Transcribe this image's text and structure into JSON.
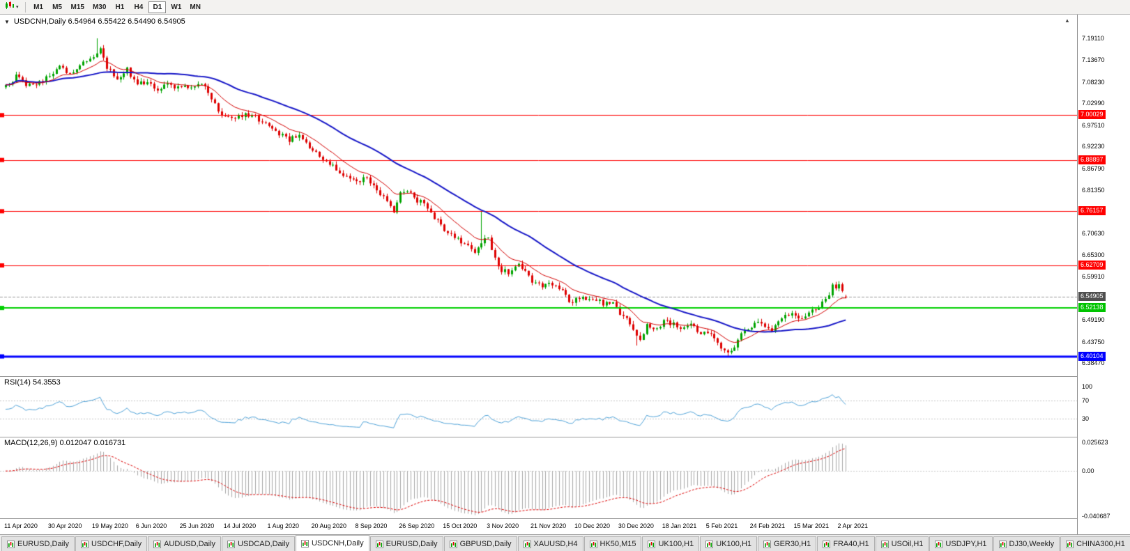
{
  "toolbar": {
    "timeframes": [
      "M1",
      "M5",
      "M15",
      "M30",
      "H1",
      "H4",
      "D1",
      "W1",
      "MN"
    ],
    "active_timeframe": "D1",
    "chart_type_icon": "candlestick-chart-icon"
  },
  "icons": {
    "collapse_triangle": "▼",
    "dropdown_caret": "▾",
    "shift_marker": "▲"
  },
  "chart": {
    "symbol": "USDCNH",
    "period": "Daily",
    "header": "USDCNH,Daily 6.54964 6.55422 6.54490 6.54905"
  },
  "price_scale": {
    "labels": [
      "7.19110",
      "7.13670",
      "7.08230",
      "7.02990",
      "6.97510",
      "6.92230",
      "6.86790",
      "6.81350",
      "6.70630",
      "6.65300",
      "6.59910",
      "6.49190",
      "6.43750",
      "6.38470"
    ],
    "badges": [
      {
        "text": "7.00029",
        "value": 7.00029,
        "bg": "#FF0000",
        "fg": "#FFFFFF",
        "name": "resistance-level-badge-7-00029"
      },
      {
        "text": "6.88897",
        "value": 6.88897,
        "bg": "#FF0000",
        "fg": "#FFFFFF",
        "name": "resistance-level-badge-6-88897"
      },
      {
        "text": "6.76157",
        "value": 6.76157,
        "bg": "#FF0000",
        "fg": "#FFFFFF",
        "name": "resistance-level-badge-6-76157"
      },
      {
        "text": "6.62709",
        "value": 6.62709,
        "bg": "#FF0000",
        "fg": "#FFFFFF",
        "name": "resistance-level-badge-6-62709"
      },
      {
        "text": "6.54905",
        "value": 6.54905,
        "bg": "#4f4f4f",
        "fg": "#FFFFFF",
        "name": "current-price-badge"
      },
      {
        "text": "6.52138",
        "value": 6.52138,
        "bg": "#00C400",
        "fg": "#FFFFFF",
        "name": "support-level-badge-6-52138"
      },
      {
        "text": "6.40104",
        "value": 6.40104,
        "bg": "#0000FF",
        "fg": "#FFFFFF",
        "name": "support-level-badge-6-40104"
      }
    ]
  },
  "rsi": {
    "label": "RSI(14) 54.3553",
    "scale_labels": [
      {
        "text": "100",
        "value": 100
      },
      {
        "text": "70",
        "value": 70
      },
      {
        "text": "30",
        "value": 30
      }
    ],
    "levels": [
      70,
      30
    ],
    "line_color": "#4FA3D9"
  },
  "macd": {
    "label": "MACD(12,26,9) 0.012047 0.016731",
    "scale_labels": [
      {
        "text": "0.025623",
        "value": 0.025623
      },
      {
        "text": "0.00",
        "value": 0
      },
      {
        "text": "-0.040687",
        "value": -0.040687
      }
    ]
  },
  "time_axis": {
    "labels": [
      "11 Apr 2020",
      "30 Apr 2020",
      "19 May 2020",
      "6 Jun 2020",
      "25 Jun 2020",
      "14 Jul 2020",
      "1 Aug 2020",
      "20 Aug 2020",
      "8 Sep 2020",
      "26 Sep 2020",
      "15 Oct 2020",
      "3 Nov 2020",
      "21 Nov 2020",
      "10 Dec 2020",
      "30 Dec 2020",
      "18 Jan 2021",
      "5 Feb 2021",
      "24 Feb 2021",
      "15 Mar 2021",
      "2 Apr 2021"
    ]
  },
  "tabs": [
    {
      "label": "EURUSD,Daily"
    },
    {
      "label": "USDCHF,Daily"
    },
    {
      "label": "AUDUSD,Daily"
    },
    {
      "label": "USDCAD,Daily"
    },
    {
      "label": "USDCNH,Daily",
      "active": true
    },
    {
      "label": "EURUSD,Daily"
    },
    {
      "label": "GBPUSD,Daily"
    },
    {
      "label": "XAUUSD,H4"
    },
    {
      "label": "HK50,M15"
    },
    {
      "label": "UK100,H1"
    },
    {
      "label": "UK100,H1"
    },
    {
      "label": "GER30,H1"
    },
    {
      "label": "FRA40,H1"
    },
    {
      "label": "USOil,H1"
    },
    {
      "label": "USDJPY,H1"
    },
    {
      "label": "DJ30,Weekly"
    },
    {
      "label": "CHINA300,H1"
    }
  ],
  "colors": {
    "candle_up": "#00A400",
    "candle_down": "#DE0000",
    "ma_fast": "#D40000",
    "ma_slow": "#1818C8",
    "bid_line": "#9a9a9a",
    "macd_histogram": "#A8A8A8",
    "macd_signal": "#DE0000",
    "rsi_levels": "#c6c6c6"
  },
  "chart_data": {
    "type": "candlestick",
    "symbol": "USDCNH",
    "timeframe": "Daily",
    "last_ohlc": {
      "open": 6.54964,
      "high": 6.55422,
      "low": 6.5449,
      "close": 6.54905
    },
    "num_candles": 250,
    "x_range": [
      "11 Apr 2020",
      "2 Apr 2021"
    ],
    "ylim": [
      6.352,
      7.25
    ],
    "price_anchors": [
      [
        0,
        7.07
      ],
      [
        3,
        7.095
      ],
      [
        6,
        7.075
      ],
      [
        10,
        7.082
      ],
      [
        13,
        7.096
      ],
      [
        16,
        7.128
      ],
      [
        18,
        7.1
      ],
      [
        20,
        7.112
      ],
      [
        23,
        7.135
      ],
      [
        26,
        7.15
      ],
      [
        28,
        7.168
      ],
      [
        30,
        7.12
      ],
      [
        33,
        7.092
      ],
      [
        36,
        7.113
      ],
      [
        39,
        7.078
      ],
      [
        42,
        7.086
      ],
      [
        45,
        7.066
      ],
      [
        48,
        7.076
      ],
      [
        52,
        7.07
      ],
      [
        55,
        7.066
      ],
      [
        58,
        7.076
      ],
      [
        61,
        7.046
      ],
      [
        63,
        7.008
      ],
      [
        65,
        7.0
      ],
      [
        68,
        6.99
      ],
      [
        71,
        7.004
      ],
      [
        74,
        6.996
      ],
      [
        78,
        6.972
      ],
      [
        81,
        6.952
      ],
      [
        84,
        6.94
      ],
      [
        87,
        6.95
      ],
      [
        91,
        6.912
      ],
      [
        94,
        6.892
      ],
      [
        97,
        6.872
      ],
      [
        100,
        6.852
      ],
      [
        104,
        6.838
      ],
      [
        107,
        6.842
      ],
      [
        110,
        6.815
      ],
      [
        113,
        6.782
      ],
      [
        115,
        6.758
      ],
      [
        117,
        6.805
      ],
      [
        119,
        6.815
      ],
      [
        121,
        6.792
      ],
      [
        124,
        6.78
      ],
      [
        127,
        6.748
      ],
      [
        130,
        6.716
      ],
      [
        133,
        6.7
      ],
      [
        136,
        6.682
      ],
      [
        139,
        6.658
      ],
      [
        141,
        6.688
      ],
      [
        143,
        6.692
      ],
      [
        146,
        6.622
      ],
      [
        149,
        6.606
      ],
      [
        152,
        6.63
      ],
      [
        154,
        6.612
      ],
      [
        156,
        6.582
      ],
      [
        159,
        6.576
      ],
      [
        162,
        6.58
      ],
      [
        165,
        6.56
      ],
      [
        167,
        6.536
      ],
      [
        169,
        6.54
      ],
      [
        172,
        6.546
      ],
      [
        175,
        6.54
      ],
      [
        178,
        6.53
      ],
      [
        180,
        6.538
      ],
      [
        182,
        6.506
      ],
      [
        184,
        6.496
      ],
      [
        186,
        6.462
      ],
      [
        188,
        6.446
      ],
      [
        190,
        6.476
      ],
      [
        192,
        6.466
      ],
      [
        195,
        6.486
      ],
      [
        198,
        6.48
      ],
      [
        200,
        6.47
      ],
      [
        203,
        6.486
      ],
      [
        205,
        6.462
      ],
      [
        208,
        6.463
      ],
      [
        210,
        6.442
      ],
      [
        212,
        6.426
      ],
      [
        214,
        6.412
      ],
      [
        216,
        6.422
      ],
      [
        218,
        6.456
      ],
      [
        221,
        6.47
      ],
      [
        223,
        6.49
      ],
      [
        225,
        6.476
      ],
      [
        227,
        6.466
      ],
      [
        229,
        6.49
      ],
      [
        231,
        6.5
      ],
      [
        234,
        6.505
      ],
      [
        236,
        6.496
      ],
      [
        238,
        6.51
      ],
      [
        240,
        6.516
      ],
      [
        242,
        6.536
      ],
      [
        244,
        6.556
      ],
      [
        245,
        6.574
      ],
      [
        247,
        6.578
      ],
      [
        248,
        6.566
      ],
      [
        249,
        6.54905
      ]
    ],
    "special_wicks": {
      "27": {
        "high": 7.1911
      },
      "141": {
        "high": 6.7616
      },
      "187": {
        "low": 6.428
      },
      "214": {
        "low": 6.40104
      }
    },
    "extreme_high": 7.1911,
    "extreme_low_clamp": 6.398,
    "horizontal_lines": [
      {
        "price": 7.00029,
        "color": "#FF0000",
        "width": 1
      },
      {
        "price": 6.88897,
        "color": "#FF0000",
        "width": 1
      },
      {
        "price": 6.76157,
        "color": "#FF0000",
        "width": 1
      },
      {
        "price": 6.62709,
        "color": "#FF0000",
        "width": 1
      },
      {
        "price": 6.52138,
        "color": "#00D000",
        "width": 2
      },
      {
        "price": 6.40104,
        "color": "#0000FF",
        "width": 3
      }
    ],
    "moving_averages": [
      {
        "type": "ema",
        "period": 12,
        "color": "#D40000",
        "width": 1
      },
      {
        "type": "sma",
        "period": 40,
        "color": "#1818C8",
        "width": 2
      }
    ],
    "indicators": [
      {
        "name": "RSI",
        "period": 14,
        "current": 54.3553,
        "levels": [
          30,
          70
        ],
        "range": [
          0,
          100
        ]
      },
      {
        "name": "MACD",
        "fast": 12,
        "slow": 26,
        "signal_period": 9,
        "macd_current": 0.012047,
        "signal_current": 0.016731
      }
    ],
    "macd_ylim": [
      -0.0425,
      0.0302
    ]
  }
}
